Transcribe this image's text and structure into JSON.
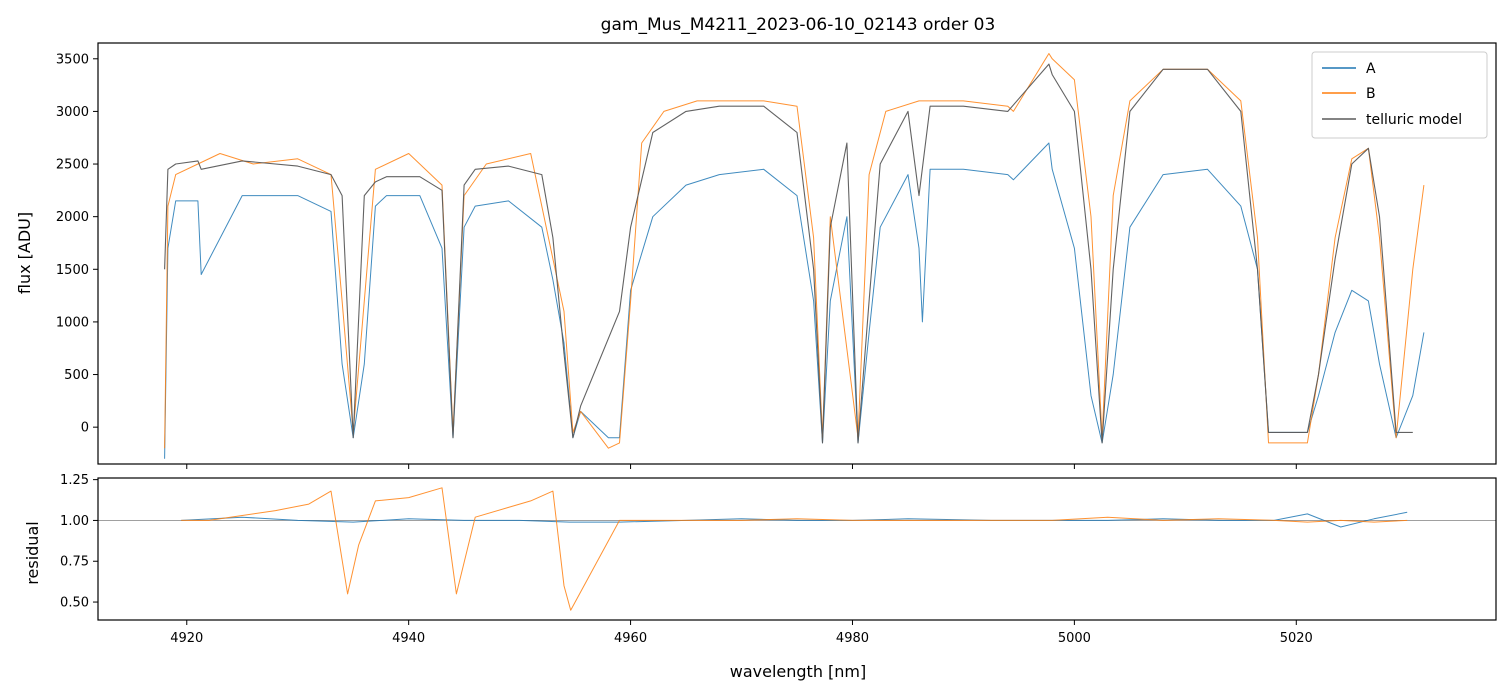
{
  "chart_data": [
    {
      "type": "line",
      "title": "gam_Mus_M4211_2023-06-10_02143  order 03",
      "xlabel": "",
      "ylabel": "flux [ADU]",
      "xlim": [
        4912,
        5038
      ],
      "ylim": [
        -350,
        3650
      ],
      "xticks": [
        4920,
        4940,
        4960,
        4980,
        5000,
        5020
      ],
      "yticks": [
        0,
        500,
        1000,
        1500,
        2000,
        2500,
        3000,
        3500
      ],
      "ytick_labels": [
        "0",
        "500",
        "1000",
        "1500",
        "2000",
        "2500",
        "3000",
        "3500"
      ],
      "grid": false,
      "legend_position": "top-right",
      "series": [
        {
          "name": "A",
          "color": "#1f77b4",
          "x": [
            4918,
            4918.3,
            4919,
            4921,
            4921.3,
            4925,
            4930,
            4933,
            4934,
            4935,
            4936,
            4937,
            4938,
            4941,
            4943,
            4944,
            4945,
            4946,
            4949,
            4952,
            4953,
            4954,
            4954.8,
            4955.5,
            4958,
            4959,
            4960,
            4962,
            4965,
            4968,
            4972,
            4975,
            4976.5,
            4977.3,
            4978,
            4979.5,
            4980.5,
            4981.5,
            4982.5,
            4985,
            4986,
            4986.3,
            4987,
            4990,
            4994,
            4994.5,
            4997.7,
            4998,
            5000,
            5001.5,
            5002.5,
            5003.5,
            5005,
            5008,
            5012,
            5015,
            5016.5,
            5017.5,
            5019,
            5021,
            5022,
            5023.5,
            5025,
            5026.5,
            5027.5,
            5029,
            5030.5,
            5031.5
          ],
          "values": [
            -300,
            1700,
            2150,
            2150,
            1450,
            2200,
            2200,
            2050,
            600,
            -100,
            600,
            2100,
            2200,
            2200,
            1700,
            -100,
            1900,
            2100,
            2150,
            1900,
            1400,
            800,
            -100,
            150,
            -100,
            -100,
            1300,
            2000,
            2300,
            2400,
            2450,
            2200,
            1200,
            -150,
            1200,
            2000,
            -150,
            900,
            1900,
            2400,
            1700,
            1000,
            2450,
            2450,
            2400,
            2350,
            2700,
            2450,
            1700,
            300,
            -150,
            500,
            1900,
            2400,
            2450,
            2100,
            1500,
            -50,
            -50,
            -50,
            300,
            900,
            1300,
            1200,
            600,
            -100,
            300,
            900
          ]
        },
        {
          "name": "B",
          "color": "#ff7f0e",
          "x": [
            4918,
            4918.3,
            4919,
            4921,
            4923,
            4926,
            4930,
            4933,
            4934,
            4935,
            4936,
            4937,
            4940,
            4943,
            4944,
            4945,
            4947,
            4951,
            4953,
            4954,
            4954.8,
            4955.5,
            4958,
            4959,
            4960,
            4961,
            4963,
            4966,
            4969,
            4972,
            4975,
            4976.5,
            4977.3,
            4978,
            4980.5,
            4981.5,
            4983,
            4986,
            4990,
            4994,
            4994.5,
            4997.7,
            4998,
            5000,
            5001.5,
            5002.5,
            5003.5,
            5005,
            5008,
            5012,
            5015,
            5016.5,
            5017.5,
            5019,
            5021,
            5022,
            5023.5,
            5025,
            5026.5,
            5027.5,
            5029,
            5030.5,
            5031.5
          ],
          "values": [
            -200,
            2100,
            2400,
            2500,
            2600,
            2500,
            2550,
            2400,
            1200,
            -50,
            1200,
            2450,
            2600,
            2300,
            -50,
            2200,
            2500,
            2600,
            1600,
            1100,
            -50,
            150,
            -200,
            -150,
            1200,
            2700,
            3000,
            3100,
            3100,
            3100,
            3050,
            1800,
            -100,
            2000,
            -100,
            2400,
            3000,
            3100,
            3100,
            3050,
            3000,
            3550,
            3500,
            3300,
            2000,
            -100,
            2200,
            3100,
            3400,
            3400,
            3100,
            1800,
            -150,
            -150,
            -150,
            500,
            1800,
            2550,
            2650,
            1800,
            -100,
            1500,
            2300
          ]
        },
        {
          "name": "telluric model",
          "color": "#5a5a5a",
          "x": [
            4918,
            4918.3,
            4919,
            4921,
            4921.3,
            4925,
            4930,
            4933,
            4934,
            4935,
            4936,
            4937,
            4938,
            4941,
            4943,
            4944,
            4945,
            4946,
            4949,
            4952,
            4953,
            4954,
            4954.8,
            4955.5,
            4959,
            4960,
            4962,
            4965,
            4968,
            4972,
            4975,
            4976.5,
            4977.3,
            4978,
            4979.5,
            4980.5,
            4981.5,
            4982.5,
            4985,
            4986,
            4987,
            4990,
            4994,
            4997.7,
            4998,
            5000,
            5001.5,
            5002.5,
            5003.5,
            5005,
            5008,
            5012,
            5015,
            5016.5,
            5017.5,
            5019,
            5021,
            5022,
            5023.5,
            5025,
            5026.5,
            5027.5,
            5029,
            5030.5
          ],
          "values": [
            1500,
            2450,
            2500,
            2530,
            2450,
            2530,
            2480,
            2400,
            2200,
            -100,
            2200,
            2330,
            2380,
            2380,
            2250,
            -100,
            2300,
            2450,
            2480,
            2400,
            1800,
            700,
            -100,
            200,
            1100,
            1900,
            2800,
            3000,
            3050,
            3050,
            2800,
            1500,
            -150,
            1900,
            2700,
            -150,
            1200,
            2500,
            3000,
            2200,
            3050,
            3050,
            3000,
            3450,
            3350,
            3000,
            1500,
            -150,
            1500,
            3000,
            3400,
            3400,
            3000,
            1500,
            -50,
            -50,
            -50,
            500,
            1600,
            2500,
            2650,
            2000,
            -50,
            -50
          ]
        }
      ]
    },
    {
      "type": "line",
      "title": "",
      "xlabel": "wavelength [nm]",
      "ylabel": "residual",
      "xlim": [
        4912,
        5038
      ],
      "ylim": [
        0.39,
        1.26
      ],
      "xticks": [
        4920,
        4940,
        4960,
        4980,
        5000,
        5020
      ],
      "xtick_labels": [
        "4920",
        "4940",
        "4960",
        "4980",
        "5000",
        "5020"
      ],
      "yticks": [
        0.5,
        0.75,
        1.0,
        1.25
      ],
      "ytick_labels": [
        "0.50",
        "0.75",
        "1.00",
        "1.25"
      ],
      "reference_line": 1.0,
      "grid": false,
      "series": [
        {
          "name": "A",
          "color": "#1f77b4",
          "x": [
            4919.5,
            4925,
            4930,
            4935,
            4940,
            4945,
            4950,
            4954.5,
            4959,
            4965,
            4970,
            4975,
            4980,
            4985,
            4992.5,
            4998,
            5003,
            5008,
            5013,
            5018,
            5021,
            5024,
            5027,
            5030
          ],
          "values": [
            1.0,
            1.02,
            1.0,
            0.99,
            1.01,
            1.0,
            1.0,
            0.99,
            0.99,
            1.0,
            1.01,
            1.0,
            1.0,
            1.01,
            1.0,
            1.0,
            1.0,
            1.01,
            1.0,
            1.0,
            1.04,
            0.96,
            1.01,
            1.05
          ]
        },
        {
          "name": "B",
          "color": "#ff7f0e",
          "x": [
            4919.5,
            4922,
            4925,
            4928,
            4931,
            4933,
            4934.5,
            4935.5,
            4937,
            4940,
            4943,
            4944.3,
            4946,
            4949,
            4951,
            4953,
            4954,
            4954.6,
            4959,
            4965,
            4970,
            4975,
            4980,
            4985,
            4992.5,
            4998,
            5003,
            5008,
            5013,
            5018,
            5021,
            5024,
            5027,
            5030
          ],
          "values": [
            1.0,
            1.0,
            1.03,
            1.06,
            1.1,
            1.18,
            0.55,
            0.85,
            1.12,
            1.14,
            1.2,
            0.55,
            1.02,
            1.08,
            1.12,
            1.18,
            0.6,
            0.45,
            1.0,
            1.0,
            1.0,
            1.01,
            1.0,
            1.0,
            1.0,
            1.0,
            1.02,
            1.0,
            1.01,
            1.0,
            0.99,
            1.0,
            0.99,
            1.0
          ]
        }
      ]
    }
  ]
}
